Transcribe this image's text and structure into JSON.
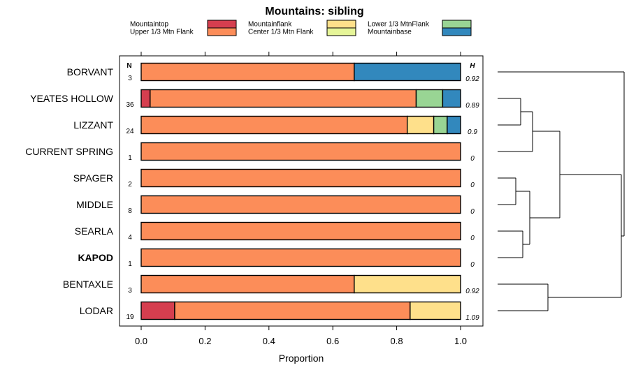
{
  "chart_data": {
    "type": "bar",
    "stacked": true,
    "orientation": "horizontal",
    "title": "Mountains: sibling",
    "xlabel": "Proportion",
    "xlim": [
      0,
      1
    ],
    "xticks": [
      "0.0",
      "0.2",
      "0.4",
      "0.6",
      "0.8",
      "1.0"
    ],
    "n_header": "N",
    "h_header": "H",
    "legend": [
      {
        "name": "Mountaintop",
        "color": "#d53e4f"
      },
      {
        "name": "Upper 1/3 Mtn Flank",
        "color": "#fc8d59"
      },
      {
        "name": "Mountainflank",
        "color": "#fee08b"
      },
      {
        "name": "Center 1/3 Mtn Flank",
        "color": "#e6f598"
      },
      {
        "name": "Lower 1/3 MtnFlank",
        "color": "#99d594"
      },
      {
        "name": "Mountainbase",
        "color": "#3288bd"
      }
    ],
    "categories": [
      "BORVANT",
      "YEATES HOLLOW",
      "LIZZANT",
      "CURRENT SPRING",
      "SPAGER",
      "MIDDLE",
      "SEARLA",
      "KAPOD",
      "BENTAXLE",
      "LODAR"
    ],
    "bold_category": "KAPOD",
    "n_values": [
      "3",
      "36",
      "24",
      "1",
      "2",
      "8",
      "4",
      "1",
      "3",
      "19"
    ],
    "h_values": [
      "0.92",
      "0.89",
      "0.9",
      "0",
      "0",
      "0",
      "0",
      "0",
      "0.92",
      "1.09"
    ],
    "series": [
      {
        "name": "Mountaintop",
        "values": [
          0,
          0.028,
          0,
          0,
          0,
          0,
          0,
          0,
          0,
          0.105
        ]
      },
      {
        "name": "Upper 1/3 Mtn Flank",
        "values": [
          0.667,
          0.833,
          0.833,
          1,
          1,
          1,
          1,
          1,
          0.667,
          0.737
        ]
      },
      {
        "name": "Mountainflank",
        "values": [
          0,
          0,
          0.083,
          0,
          0,
          0,
          0,
          0,
          0.333,
          0.158
        ]
      },
      {
        "name": "Center 1/3 Mtn Flank",
        "values": [
          0,
          0,
          0,
          0,
          0,
          0,
          0,
          0,
          0,
          0
        ]
      },
      {
        "name": "Lower 1/3 MtnFlank",
        "values": [
          0,
          0.083,
          0.042,
          0,
          0,
          0,
          0,
          0,
          0,
          0
        ]
      },
      {
        "name": "Mountainbase",
        "values": [
          0.333,
          0.056,
          0.042,
          0,
          0,
          0,
          0,
          0,
          0,
          0
        ]
      }
    ],
    "dendrogram": {
      "type": "hierarchical-clustering",
      "leaf_order": [
        "BORVANT",
        "YEATES HOLLOW",
        "LIZZANT",
        "CURRENT SPRING",
        "SPAGER",
        "MIDDLE",
        "SEARLA",
        "KAPOD",
        "BENTAXLE",
        "LODAR"
      ]
    }
  }
}
